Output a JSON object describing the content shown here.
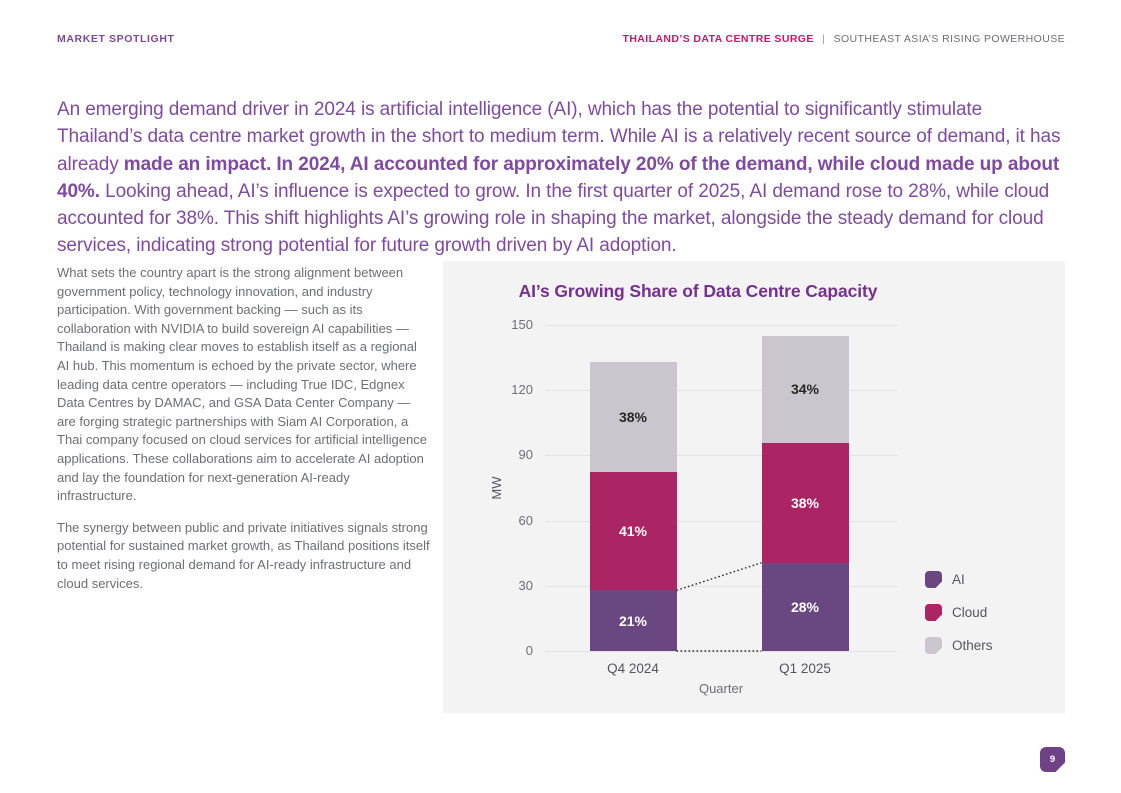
{
  "header": {
    "left": "MARKET SPOTLIGHT",
    "right_primary": "THAILAND’S DATA CENTRE SURGE",
    "separator": "|",
    "right_secondary": "SOUTHEAST ASIA’S RISING POWERHOUSE"
  },
  "intro": {
    "part1": "An emerging demand driver in 2024 is artificial intelligence (AI), which has the potential to significantly stimulate Thailand’s data centre market growth in the short to medium term. While AI is a relatively recent source of demand, it has already ",
    "emphasis": "made an impact. In 2024, AI accounted for approximately 20% of the demand, while cloud made up about 40%.",
    "part2": " Looking ahead, AI’s influence is expected to grow. In the first quarter of 2025, AI demand rose to 28%, while cloud accounted for 38%. This shift highlights AI’s growing role in shaping the market, alongside the steady demand for cloud services, indicating strong potential for future growth driven by AI adoption."
  },
  "sidebar": {
    "paragraph1": "What sets the country apart is the strong alignment between government policy, technology innovation, and industry participation. With government backing — such as its collaboration with NVIDIA to build sovereign AI capabilities — Thailand is making clear moves to establish itself as a regional AI hub. This momentum is echoed by the private sector, where leading data centre operators — including True IDC, Edgnex Data Centres by DAMAC, and GSA Data Center Company — are forging strategic partnerships with Siam AI Corporation, a Thai company focused on cloud services for artificial intelligence applications. These collaborations aim to accelerate AI adoption and lay the foundation for next-generation AI-ready infrastructure.",
    "paragraph2": "The synergy between public and private initiatives signals strong potential for sustained market growth, as Thailand positions itself to meet rising regional demand for AI-ready infrastructure and cloud services."
  },
  "chart_data": {
    "type": "bar",
    "stacked": true,
    "title": "AI’s Growing Share of Data Centre Capacity",
    "xlabel": "Quarter",
    "ylabel": "MW",
    "categories": [
      "Q4 2024",
      "Q1 2025"
    ],
    "totals_mw": [
      133,
      145
    ],
    "series": [
      {
        "name": "AI",
        "color": "#6b4781",
        "label_color": "#ffffff",
        "percent": [
          21,
          28
        ],
        "values_mw": [
          27.9,
          40.6
        ]
      },
      {
        "name": "Cloud",
        "color": "#ab2564",
        "label_color": "#ffffff",
        "percent": [
          41,
          38
        ],
        "values_mw": [
          54.5,
          55.1
        ]
      },
      {
        "name": "Others",
        "color": "#cac6ce",
        "label_color": "#262626",
        "percent": [
          38,
          34
        ],
        "values_mw": [
          50.5,
          49.3
        ]
      }
    ],
    "ylim": [
      0,
      150
    ],
    "yticks": [
      0,
      30,
      60,
      90,
      120,
      150
    ],
    "grid": true,
    "legend_position": "right",
    "annotations": [
      "dotted connector between AI segment tops",
      "dotted baseline between bars at 0 MW"
    ]
  },
  "page": {
    "number": "9"
  }
}
